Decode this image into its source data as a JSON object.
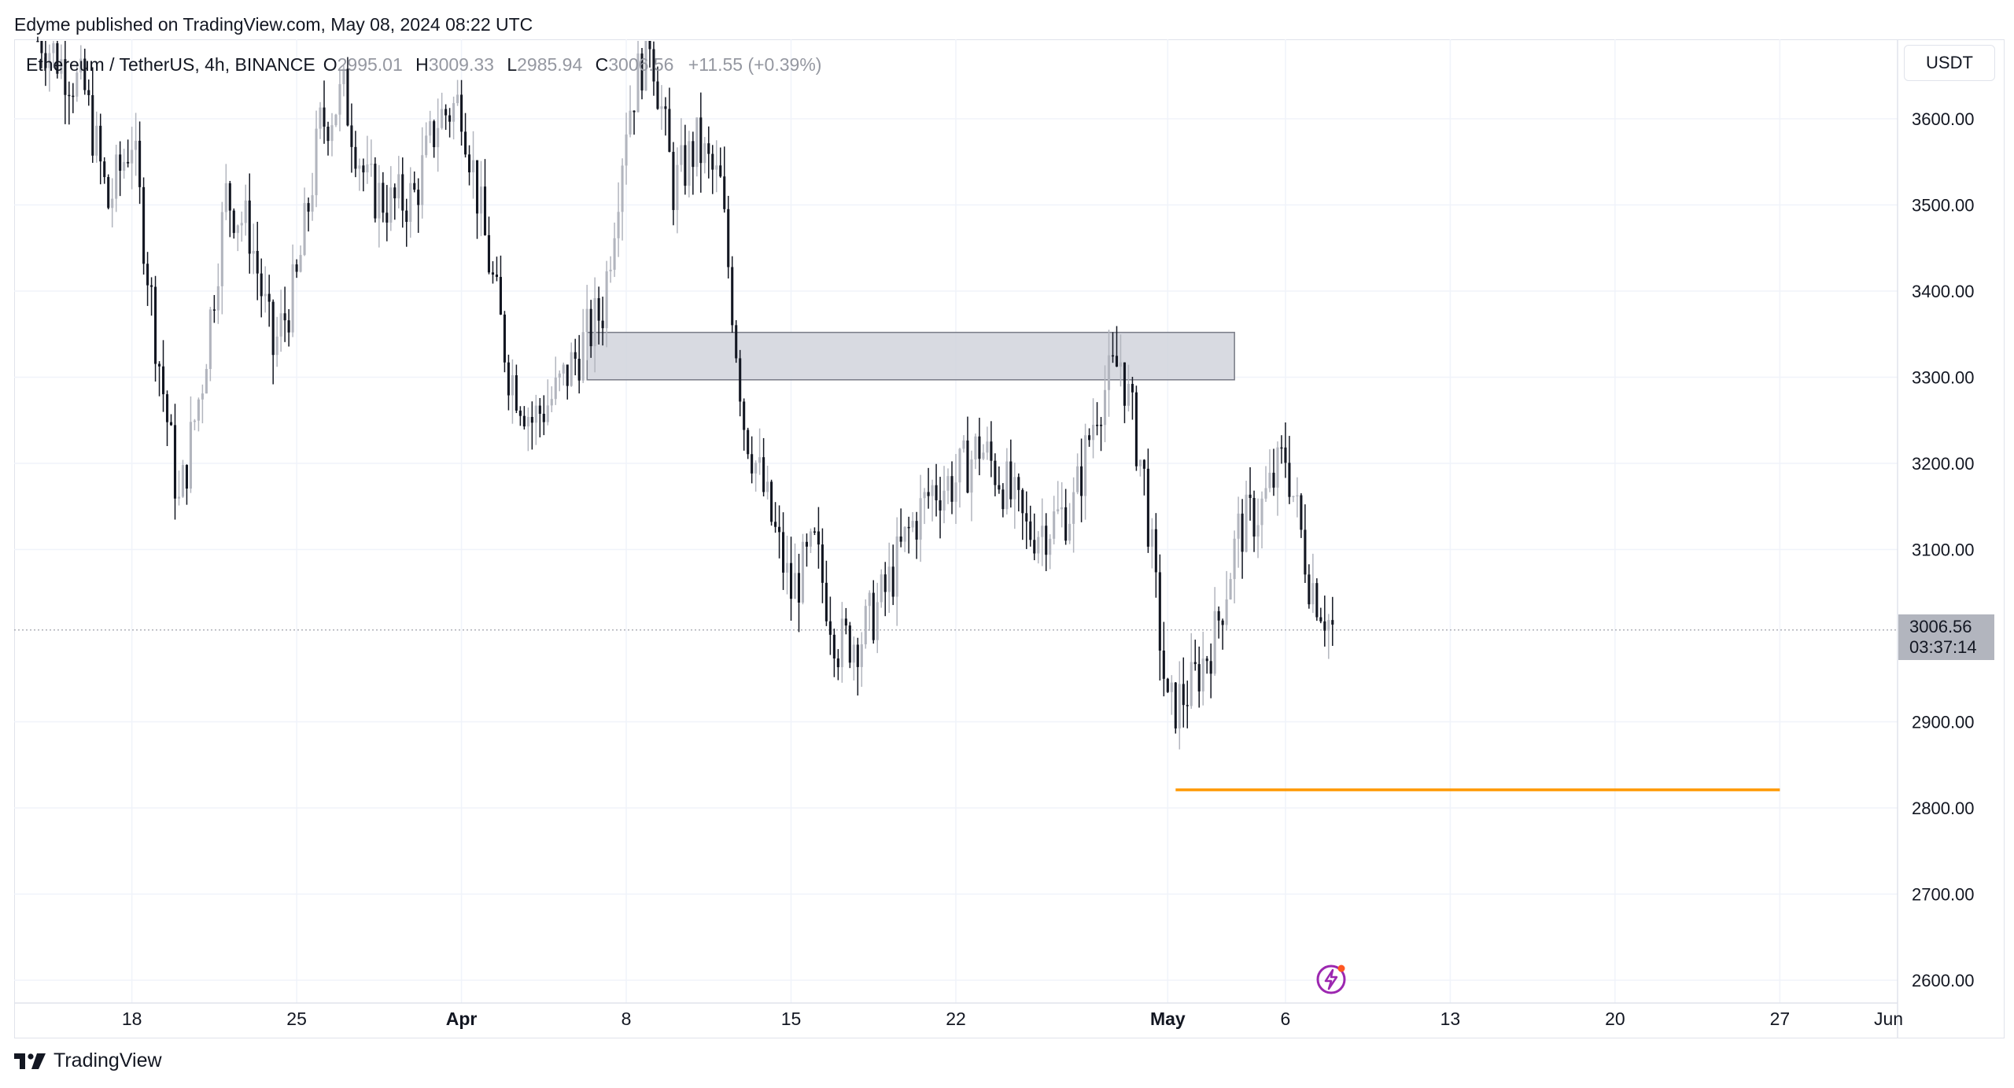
{
  "header": {
    "published_line": "Edyme published on TradingView.com, May 08, 2024 08:22 UTC"
  },
  "legend": {
    "symbol": "Ethereum / TetherUS, 4h, BINANCE",
    "open_label": "O",
    "open": "2995.01",
    "high_label": "H",
    "high": "3009.33",
    "low_label": "L",
    "low": "2985.94",
    "close_label": "C",
    "close": "3006.56",
    "change": "+11.55 (+0.39%)"
  },
  "currency": "USDT",
  "last_price": {
    "price": "3006.56",
    "countdown": "03:37:14"
  },
  "footer": {
    "brand": "TradingView"
  },
  "icons": {
    "alert": "lightning-icon",
    "logo": "tradingview-logo-icon"
  },
  "colors": {
    "up": "#b2b5be",
    "down": "#131722",
    "zone_fill": "#d1d4dc",
    "zone_border": "#787b86",
    "level_line": "#ff9800",
    "grid": "#f0f3fa",
    "text": "#131722",
    "alert": "#9c27b0"
  },
  "chart_data": {
    "type": "candlestick",
    "interval": "4h",
    "y_axis_labels": [
      "3600.00",
      "3500.00",
      "3400.00",
      "3300.00",
      "3200.00",
      "3100.00",
      "2900.00",
      "2800.00",
      "2700.00",
      "2600.00"
    ],
    "ylim": [
      2560,
      3700
    ],
    "x_axis_labels": [
      "18",
      "25",
      "Apr",
      "8",
      "15",
      "22",
      "May",
      "6",
      "13",
      "20",
      "27",
      "Jun"
    ],
    "x_axis_bold": [
      "Apr",
      "May"
    ],
    "xlim": [
      "2024-03-13",
      "2024-06-01"
    ],
    "current_price": 3006.56,
    "annotations": [
      {
        "type": "rectangle_zone",
        "x_start": "2024-04-05",
        "x_end": "2024-05-03",
        "y_low": 3297,
        "y_high": 3352
      },
      {
        "type": "horizontal_line",
        "x_start": "2024-05-01",
        "x_end": "2024-05-27",
        "y": 2821
      }
    ],
    "price_path": [
      [
        "2024-03-14",
        3700
      ],
      [
        "2024-03-16",
        3630
      ],
      [
        "2024-03-17",
        3500
      ],
      [
        "2024-03-18",
        3580
      ],
      [
        "2024-03-19",
        3350
      ],
      [
        "2024-03-20",
        3150
      ],
      [
        "2024-03-21",
        3300
      ],
      [
        "2024-03-22",
        3510
      ],
      [
        "2024-03-23",
        3470
      ],
      [
        "2024-03-24",
        3330
      ],
      [
        "2024-03-25",
        3410
      ],
      [
        "2024-03-26",
        3590
      ],
      [
        "2024-03-27",
        3630
      ],
      [
        "2024-03-28",
        3520
      ],
      [
        "2024-03-29",
        3500
      ],
      [
        "2024-03-30",
        3510
      ],
      [
        "2024-03-31",
        3600
      ],
      [
        "2024-04-01",
        3620
      ],
      [
        "2024-04-02",
        3460
      ],
      [
        "2024-04-03",
        3310
      ],
      [
        "2024-04-04",
        3250
      ],
      [
        "2024-04-05",
        3280
      ],
      [
        "2024-04-06",
        3330
      ],
      [
        "2024-04-07",
        3380
      ],
      [
        "2024-04-08",
        3600
      ],
      [
        "2024-04-09",
        3700
      ],
      [
        "2024-04-10",
        3520
      ],
      [
        "2024-04-11",
        3570
      ],
      [
        "2024-04-12",
        3520
      ],
      [
        "2024-04-13",
        3250
      ],
      [
        "2024-04-14",
        3150
      ],
      [
        "2024-04-15",
        3050
      ],
      [
        "2024-04-16",
        3100
      ],
      [
        "2024-04-17",
        2990
      ],
      [
        "2024-04-18",
        3000
      ],
      [
        "2024-04-19",
        3050
      ],
      [
        "2024-04-20",
        3120
      ],
      [
        "2024-04-21",
        3170
      ],
      [
        "2024-04-22",
        3180
      ],
      [
        "2024-04-23",
        3220
      ],
      [
        "2024-04-24",
        3180
      ],
      [
        "2024-04-25",
        3120
      ],
      [
        "2024-04-26",
        3130
      ],
      [
        "2024-04-27",
        3150
      ],
      [
        "2024-04-28",
        3270
      ],
      [
        "2024-04-29",
        3320
      ],
      [
        "2024-04-30",
        3180
      ],
      [
        "2024-05-01",
        2910
      ],
      [
        "2024-05-02",
        2940
      ],
      [
        "2024-05-03",
        3000
      ],
      [
        "2024-05-04",
        3120
      ],
      [
        "2024-05-05",
        3150
      ],
      [
        "2024-05-06",
        3210
      ],
      [
        "2024-05-07",
        3070
      ],
      [
        "2024-05-08",
        3006.56
      ]
    ]
  }
}
